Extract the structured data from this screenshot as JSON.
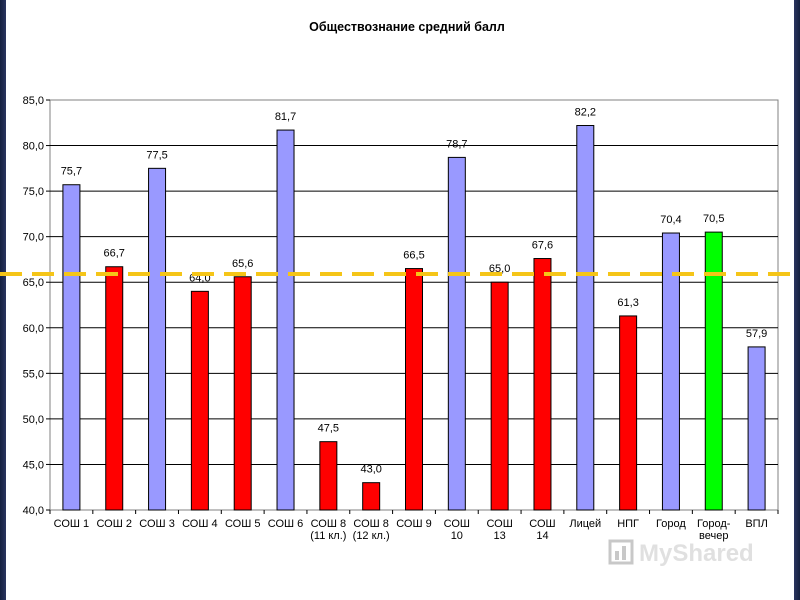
{
  "chart_data": {
    "type": "bar",
    "title": "Обществознание средний балл",
    "ylim": [
      40,
      85
    ],
    "yticks": [
      "40,0",
      "45,0",
      "50,0",
      "55,0",
      "60,0",
      "65,0",
      "70,0",
      "75,0",
      "80,0",
      "85,0"
    ],
    "ytick_values": [
      40,
      45,
      50,
      55,
      60,
      65,
      70,
      75,
      80,
      85
    ],
    "grid": true,
    "categories": [
      [
        "СОШ 1"
      ],
      [
        "СОШ 2"
      ],
      [
        "СОШ 3"
      ],
      [
        "СОШ 4"
      ],
      [
        "СОШ 5"
      ],
      [
        "СОШ 6"
      ],
      [
        "СОШ 8",
        "(11 кл.)"
      ],
      [
        "СОШ 8",
        "(12 кл.)"
      ],
      [
        "СОШ 9"
      ],
      [
        "СОШ",
        "10"
      ],
      [
        "СОШ",
        "13"
      ],
      [
        "СОШ",
        "14"
      ],
      [
        "Лицей"
      ],
      [
        "НПГ"
      ],
      [
        "Город"
      ],
      [
        "Город-",
        "вечер"
      ],
      [
        "ВПЛ"
      ]
    ],
    "values": [
      75.7,
      66.7,
      77.5,
      64.0,
      65.6,
      81.7,
      47.5,
      43.0,
      66.5,
      78.7,
      65.0,
      67.6,
      82.2,
      61.3,
      70.4,
      70.5,
      57.9
    ],
    "value_labels": [
      "75,7",
      "66,7",
      "77,5",
      "64,0",
      "65,6",
      "81,7",
      "47,5",
      "43,0",
      "66,5",
      "78,7",
      "65,0",
      "67,6",
      "82,2",
      "61,3",
      "70,4",
      "70,5",
      "57,9"
    ],
    "bar_colors": [
      "#9999ff",
      "#ff0000",
      "#9999ff",
      "#ff0000",
      "#ff0000",
      "#9999ff",
      "#ff0000",
      "#ff0000",
      "#ff0000",
      "#9999ff",
      "#ff0000",
      "#ff0000",
      "#9999ff",
      "#ff0000",
      "#9999ff",
      "#00ff00",
      "#9999ff"
    ],
    "reference_line": {
      "value": 65.9,
      "color": "#f5c518",
      "style": "dashed"
    }
  },
  "logo": {
    "icon": "chart-presentation-icon"
  }
}
